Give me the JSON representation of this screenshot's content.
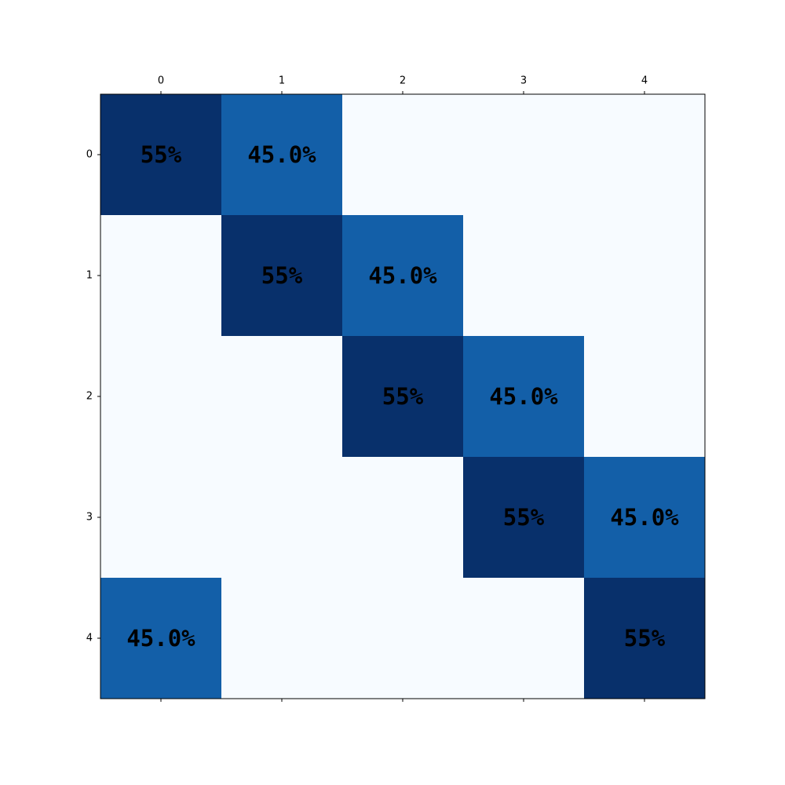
{
  "chart_data": {
    "type": "heatmap",
    "title": "",
    "xlabel": "",
    "ylabel": "",
    "x_ticks": [
      "0",
      "1",
      "2",
      "3",
      "4"
    ],
    "y_ticks": [
      "0",
      "1",
      "2",
      "3",
      "4"
    ],
    "x_tick_position": "top-and-bottom",
    "colormap": "Blues",
    "values": [
      [
        0.55,
        0.45,
        0,
        0,
        0
      ],
      [
        0,
        0.55,
        0.45,
        0,
        0
      ],
      [
        0,
        0,
        0.55,
        0.45,
        0
      ],
      [
        0,
        0,
        0,
        0.55,
        0.45
      ],
      [
        0.45,
        0,
        0,
        0,
        0.55
      ]
    ],
    "labels": [
      [
        "55%",
        "45.0%",
        "",
        "",
        ""
      ],
      [
        "",
        "55%",
        "45.0%",
        "",
        ""
      ],
      [
        "",
        "",
        "55%",
        "45.0%",
        ""
      ],
      [
        "",
        "",
        "",
        "55%",
        "45.0%"
      ],
      [
        "45.0%",
        "",
        "",
        "",
        "55%"
      ]
    ],
    "colors": {
      "high": "#08306b",
      "mid": "#135fa8",
      "low": "#f7fbff",
      "text": "#000000",
      "axis": "#000000"
    }
  }
}
